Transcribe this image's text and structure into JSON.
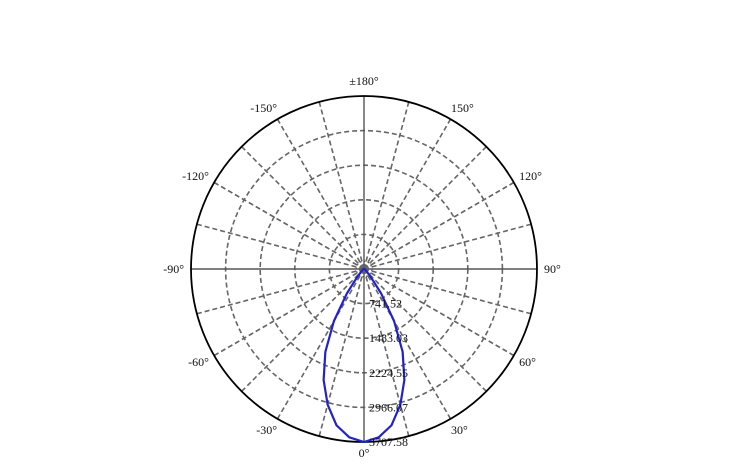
{
  "chart_data": {
    "type": "polar",
    "title": "",
    "angle_labels": [
      {
        "deg": 0,
        "text": "0°"
      },
      {
        "deg": 30,
        "text": "30°"
      },
      {
        "deg": 60,
        "text": "60°"
      },
      {
        "deg": 90,
        "text": "90°"
      },
      {
        "deg": 120,
        "text": "120°"
      },
      {
        "deg": 150,
        "text": "150°"
      },
      {
        "deg": 180,
        "text": "±180°"
      },
      {
        "deg": -150,
        "text": "-150°"
      },
      {
        "deg": -120,
        "text": "-120°"
      },
      {
        "deg": -90,
        "text": "-90°"
      },
      {
        "deg": -60,
        "text": "-60°"
      },
      {
        "deg": -30,
        "text": "-30°"
      }
    ],
    "radial_ticks": [
      741.52,
      1483.03,
      2224.55,
      2966.07,
      3707.58
    ],
    "radial_tick_labels": [
      "741.52",
      "1483.03",
      "2224.55",
      "2966.07",
      "3707.58"
    ],
    "r_max": 3707.58,
    "spoke_step_deg": 15,
    "grid": true,
    "series": [
      {
        "color": "#2222cc",
        "points": [
          {
            "angle": 0,
            "value": 3707.58
          },
          {
            "angle": 5,
            "value": 3620
          },
          {
            "angle": 10,
            "value": 3400
          },
          {
            "angle": 15,
            "value": 3010
          },
          {
            "angle": 20,
            "value": 2530
          },
          {
            "angle": 25,
            "value": 1960
          },
          {
            "angle": 30,
            "value": 1290
          },
          {
            "angle": 35,
            "value": 640
          },
          {
            "angle": 40,
            "value": 230
          },
          {
            "angle": 45,
            "value": 90
          },
          {
            "angle": 60,
            "value": 30
          },
          {
            "angle": 90,
            "value": 10
          },
          {
            "angle": 135,
            "value": 5
          },
          {
            "angle": 180,
            "value": 0
          },
          {
            "angle": -135,
            "value": 5
          },
          {
            "angle": -90,
            "value": 10
          },
          {
            "angle": -60,
            "value": 30
          },
          {
            "angle": -45,
            "value": 90
          },
          {
            "angle": -40,
            "value": 230
          },
          {
            "angle": -35,
            "value": 640
          },
          {
            "angle": -30,
            "value": 1290
          },
          {
            "angle": -25,
            "value": 1960
          },
          {
            "angle": -20,
            "value": 2530
          },
          {
            "angle": -15,
            "value": 3010
          },
          {
            "angle": -10,
            "value": 3400
          },
          {
            "angle": -5,
            "value": 3620
          }
        ]
      }
    ]
  }
}
